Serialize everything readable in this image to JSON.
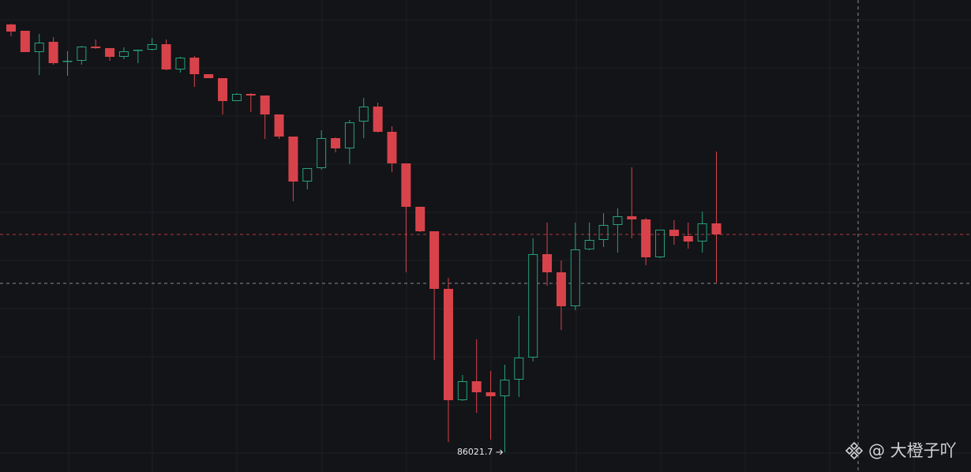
{
  "chart_data": {
    "type": "candlestick",
    "open": [
      96860,
      96700,
      96160,
      96420,
      95920,
      95940,
      96300,
      96260,
      96040,
      96200,
      96220,
      96360,
      95720,
      96020,
      95600,
      95500,
      94920,
      95100,
      95060,
      94580,
      94020,
      92880,
      93220,
      93980,
      93720,
      94400,
      94780,
      94140,
      93340,
      92240,
      91620,
      90160,
      87340,
      87820,
      87540,
      87440,
      87860,
      88420,
      91040,
      90580,
      89720,
      91160,
      91400,
      91780,
      92000,
      91920,
      90960,
      91660,
      91500,
      91360,
      91820
    ],
    "high": [
      96880,
      96700,
      96620,
      96540,
      96180,
      96320,
      96480,
      96260,
      96280,
      96220,
      96520,
      96480,
      96040,
      96060,
      95600,
      95500,
      95120,
      95120,
      95060,
      94580,
      94020,
      93220,
      94180,
      94000,
      94440,
      95000,
      94880,
      94280,
      93340,
      92240,
      91620,
      90440,
      87980,
      88880,
      88080,
      88240,
      89480,
      91440,
      91840,
      90880,
      91840,
      91840,
      92080,
      92200,
      93240,
      91960,
      91660,
      91900,
      91840,
      92120,
      93640
    ],
    "low": [
      96560,
      96160,
      95580,
      95840,
      95560,
      95840,
      96240,
      95940,
      95980,
      95880,
      96200,
      95700,
      95640,
      95280,
      95500,
      94580,
      94920,
      94640,
      93960,
      93960,
      92380,
      92680,
      93180,
      93620,
      93320,
      93980,
      94120,
      93120,
      90580,
      91600,
      88360,
      86280,
      87320,
      87020,
      86340,
      86021.7,
      87420,
      88320,
      90240,
      89120,
      89620,
      91140,
      91220,
      91080,
      91440,
      90760,
      90940,
      91280,
      91180,
      91080,
      90320
    ],
    "close": [
      96680,
      96160,
      96400,
      95880,
      95940,
      96300,
      96260,
      96040,
      96180,
      96220,
      96360,
      95720,
      96020,
      95600,
      95500,
      94920,
      95100,
      95060,
      94580,
      94020,
      92880,
      93220,
      93980,
      93720,
      94380,
      94780,
      94140,
      93340,
      92240,
      91620,
      90160,
      87340,
      87820,
      87540,
      87440,
      87860,
      88420,
      91040,
      90580,
      89720,
      91160,
      91400,
      91780,
      92000,
      91920,
      90960,
      91660,
      91500,
      91360,
      91820,
      91540
    ],
    "ylim": [
      85520,
      97480
    ],
    "up_color": "#26a17b",
    "down_color": "#d8434b",
    "watermark": "@ 大橙子吖"
  }
}
